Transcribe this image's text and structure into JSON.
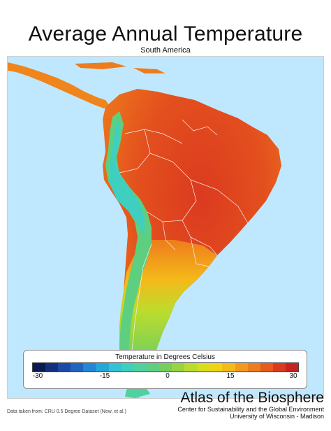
{
  "title": "Average Annual Temperature",
  "subtitle": "South America",
  "legend": {
    "title": "Temperature in Degrees Celsius",
    "min": -30,
    "max": 30,
    "ticks": [
      "-30",
      "-15",
      "0",
      "15",
      "30"
    ],
    "colors": [
      "#0b1a55",
      "#12307d",
      "#1b49a6",
      "#1f66c2",
      "#2386d6",
      "#26a6d9",
      "#2fc3d3",
      "#3fcfc0",
      "#4fd2a0",
      "#5ecf7e",
      "#75cf5d",
      "#98d442",
      "#bcdc2c",
      "#d8de1a",
      "#eed514",
      "#f4b91a",
      "#f39a1c",
      "#ee7c1c",
      "#e75c1e",
      "#db3a1f",
      "#c8221f"
    ]
  },
  "source": "Data taken from: CRU 0.5 Degree Dataset (New, et al.)",
  "brand": {
    "name": "Atlas of the Biosphere",
    "line1": "Center for Sustainability and the Global Environment",
    "line2": "University of Wisconsin - Madison"
  }
}
